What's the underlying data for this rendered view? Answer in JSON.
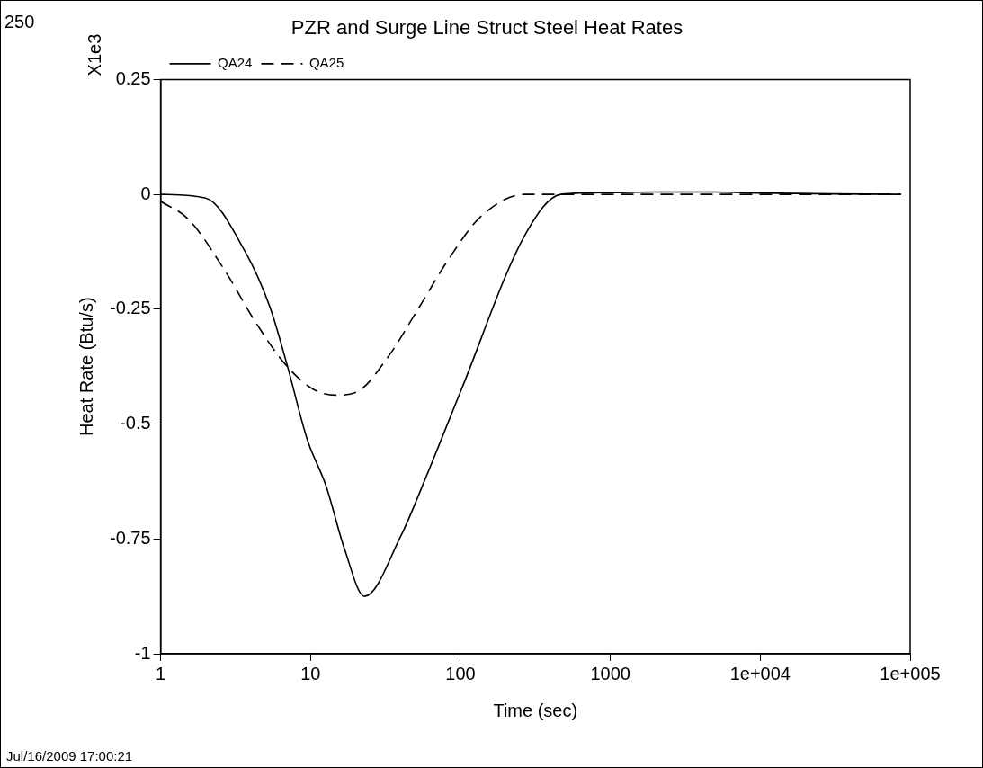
{
  "chart_data": {
    "type": "line",
    "title": "PZR and Surge Line Struct Steel Heat Rates",
    "xlabel": "Time (sec)",
    "ylabel": "Heat Rate (Btu/s)",
    "annotations": [
      "250",
      "X1e3",
      "Jul/16/2009 17:00:21"
    ],
    "log": "x",
    "xlim": [
      1,
      100000
    ],
    "xticks": [
      1,
      10,
      100,
      1000,
      {
        "value": 10000,
        "label": "1e+004"
      },
      {
        "value": 100000,
        "label": "1e+005"
      }
    ],
    "ylim": [
      -1,
      0.25
    ],
    "yticks": [
      {
        "value": -1,
        "label": "-1"
      },
      -0.75,
      -0.5,
      -0.25,
      0,
      0.25
    ],
    "grid": false,
    "legend": "top left",
    "marker": "none",
    "series": [
      {
        "name": "QA24",
        "color": "#000000",
        "line_style": "solid",
        "x": [
          1,
          2,
          3.64,
          5.37,
          6.95,
          9.5,
          12.7,
          16.9,
          22.9,
          40,
          58,
          100,
          270,
          468,
          1000,
          2000,
          5000,
          10000,
          30000,
          87000
        ],
        "values": [
          0,
          -0.008,
          -0.123,
          -0.246,
          -0.369,
          -0.533,
          -0.635,
          -0.773,
          -0.875,
          -0.744,
          -0.621,
          -0.43,
          -0.088,
          0,
          0.004,
          0.005,
          0.005,
          0.003,
          0.001,
          0
        ]
      },
      {
        "name": "QA25",
        "color": "#000000",
        "line_style": "dashed",
        "x": [
          1,
          1.54,
          2.73,
          4.2,
          6.75,
          10.4,
          14.7,
          20.4,
          32.7,
          53,
          85,
          138,
          270,
          1000,
          10000,
          87000
        ],
        "values": [
          -0.015,
          -0.055,
          -0.17,
          -0.273,
          -0.369,
          -0.424,
          -0.437,
          -0.43,
          -0.355,
          -0.246,
          -0.137,
          -0.047,
          0,
          0,
          0,
          0
        ]
      }
    ]
  }
}
